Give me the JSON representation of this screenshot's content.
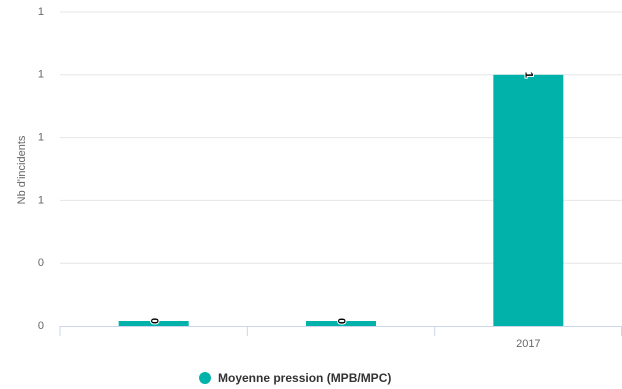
{
  "chart_data": {
    "type": "bar",
    "y_axis_label": "Nb d'incidents",
    "categories": [
      null,
      null,
      "2017"
    ],
    "series": [
      {
        "name": "Moyenne pression (MPB/MPC)",
        "color": "#00b2a9",
        "values": [
          0,
          0,
          1
        ]
      }
    ],
    "ylim": [
      0,
      1.25
    ],
    "yticks": [
      0,
      {
        "value": 0.25,
        "label": "0"
      },
      {
        "value": 0.5,
        "label": "1"
      },
      {
        "value": 0.75,
        "label": "1"
      },
      1,
      {
        "value": 1.25,
        "label": "1"
      }
    ],
    "grid": true
  }
}
